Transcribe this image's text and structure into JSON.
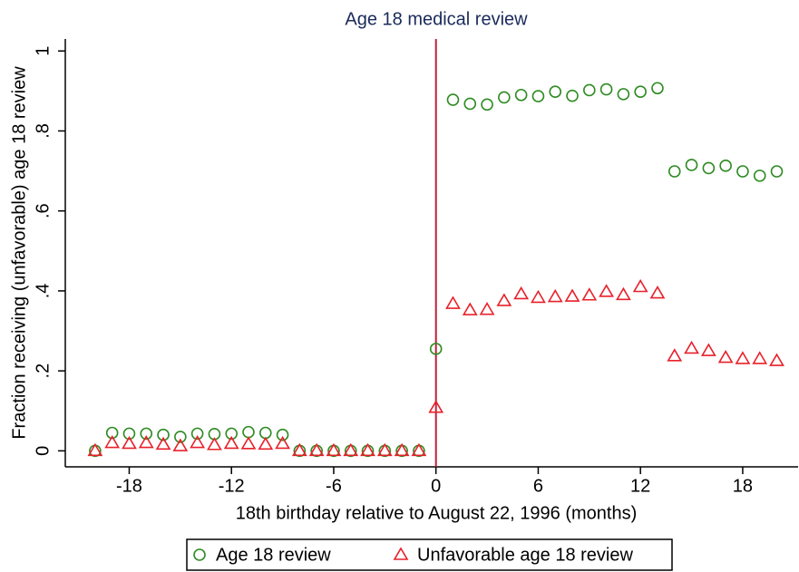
{
  "chart_data": {
    "type": "scatter",
    "x_label": "18th birthday relative to August 22, 1996 (months)",
    "y_label": "Fraction receiving (unfavorable) age 18 review",
    "vline": {
      "x": 0,
      "label": "Age 18 medical review",
      "color": "#c0203a"
    },
    "x": [
      -20,
      -19,
      -18,
      -17,
      -16,
      -15,
      -14,
      -13,
      -12,
      -11,
      -10,
      -9,
      -8,
      -7,
      -6,
      -5,
      -4,
      -3,
      -2,
      -1,
      0,
      1,
      2,
      3,
      4,
      5,
      6,
      7,
      8,
      9,
      10,
      11,
      12,
      13,
      14,
      15,
      16,
      17,
      18,
      19,
      20
    ],
    "series": [
      {
        "name": "Age 18 review",
        "color": "#2e8b22",
        "marker": "circle",
        "values": [
          0,
          0.045,
          0.043,
          0.043,
          0.04,
          0.035,
          0.043,
          0.042,
          0.043,
          0.047,
          0.045,
          0.04,
          0,
          0,
          0,
          0,
          0,
          0,
          0,
          0,
          0.255,
          0.878,
          0.868,
          0.866,
          0.884,
          0.89,
          0.887,
          0.898,
          0.888,
          0.902,
          0.904,
          0.892,
          0.898,
          0.907,
          0.699,
          0.715,
          0.707,
          0.713,
          0.699,
          0.688,
          0.699
        ]
      },
      {
        "name": "Unfavorable age 18 review",
        "color": "#e8202a",
        "marker": "triangle",
        "values": [
          0,
          0.02,
          0.018,
          0.02,
          0.016,
          0.012,
          0.02,
          0.015,
          0.018,
          0.017,
          0.016,
          0.018,
          0,
          0,
          0,
          0,
          0,
          0,
          0,
          0,
          0.108,
          0.368,
          0.352,
          0.353,
          0.375,
          0.392,
          0.383,
          0.385,
          0.386,
          0.389,
          0.398,
          0.39,
          0.41,
          0.394,
          0.237,
          0.256,
          0.25,
          0.233,
          0.23,
          0.23,
          0.225
        ]
      }
    ],
    "xlim": [
      -21.75,
      21.25
    ],
    "xticks": [
      -18,
      -12,
      -6,
      0,
      6,
      12,
      18
    ],
    "ylim": [
      -0.04,
      1.03
    ],
    "yticks": [
      0,
      {
        "value": 0.2,
        "label": ".2"
      },
      {
        "value": 0.4,
        "label": ".4"
      },
      {
        "value": 0.6,
        "label": ".6"
      },
      {
        "value": 0.8,
        "label": ".8"
      },
      1
    ]
  }
}
